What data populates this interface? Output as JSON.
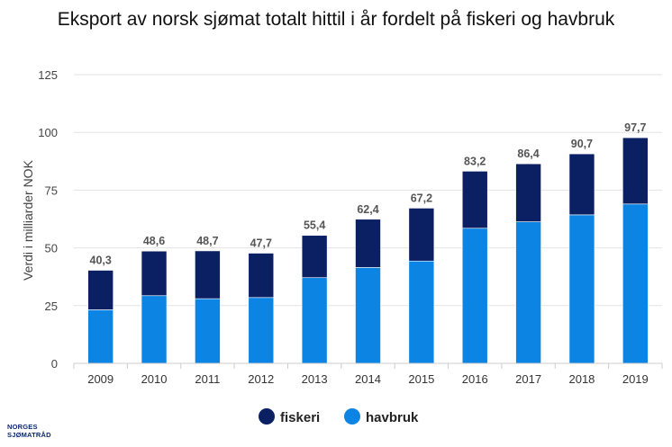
{
  "chart_data": {
    "type": "bar",
    "stacked": true,
    "title": "Eksport av norsk sjømat totalt hittil i år fordelt på fiskeri og havbruk",
    "xlabel": "",
    "ylabel": "Verdi i milliarder NOK",
    "ylim": [
      0,
      125
    ],
    "yticks": [
      0,
      25,
      50,
      75,
      100,
      125
    ],
    "grid": true,
    "legend_position": "bottom",
    "categories": [
      "2009",
      "2010",
      "2011",
      "2012",
      "2013",
      "2014",
      "2015",
      "2016",
      "2017",
      "2018",
      "2019"
    ],
    "totals": [
      "40,3",
      "48,6",
      "48,7",
      "47,7",
      "55,4",
      "62,4",
      "67,2",
      "83,2",
      "86,4",
      "90,7",
      "97,7"
    ],
    "series": [
      {
        "name": "havbruk",
        "color": "#0b84e3",
        "values": [
          23.2,
          29.3,
          28.0,
          28.5,
          37.1,
          41.5,
          44.3,
          58.5,
          61.3,
          64.3,
          69.0
        ]
      },
      {
        "name": "fiskeri",
        "color": "#0b1f63",
        "values": [
          17.1,
          19.3,
          20.7,
          19.2,
          18.3,
          20.9,
          22.9,
          24.7,
          25.1,
          26.4,
          28.7
        ]
      }
    ]
  },
  "logo": {
    "line1": "NORGES",
    "line2": "SJØMATRÅD"
  }
}
